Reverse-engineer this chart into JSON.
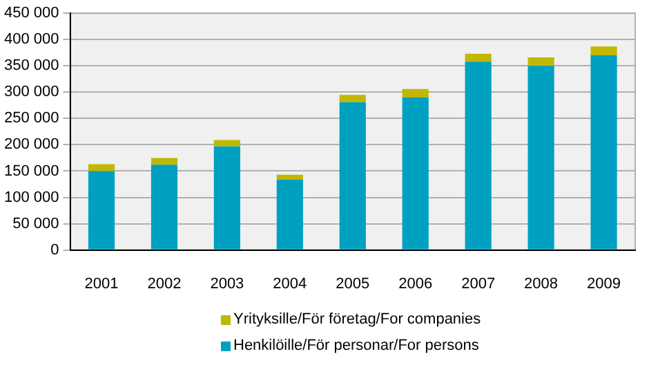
{
  "chart_data": {
    "type": "bar",
    "stacked": true,
    "categories": [
      "2001",
      "2002",
      "2003",
      "2004",
      "2005",
      "2006",
      "2007",
      "2008",
      "2009"
    ],
    "series": [
      {
        "name": "Henkilöille/För personar/For persons",
        "color": "#00a0c0",
        "values": [
          150000,
          162000,
          197000,
          134000,
          281000,
          290000,
          358000,
          350000,
          370000
        ]
      },
      {
        "name": "Yrityksille/För företag/For companies",
        "color": "#c0b800",
        "values": [
          13000,
          13000,
          12000,
          9000,
          14000,
          16000,
          15000,
          16000,
          17000
        ]
      }
    ],
    "ylim": [
      0,
      450000
    ],
    "yticks": [
      0,
      {
        "value": 50000,
        "label": "50 000"
      },
      {
        "value": 100000,
        "label": "100 000"
      },
      {
        "value": 150000,
        "label": "150 000"
      },
      {
        "value": 200000,
        "label": "200 000"
      },
      {
        "value": 250000,
        "label": "250 000"
      },
      {
        "value": 300000,
        "label": "300 000"
      },
      {
        "value": 350000,
        "label": "350 000"
      },
      {
        "value": 400000,
        "label": "400 000"
      },
      {
        "value": 450000,
        "label": "450 000"
      }
    ],
    "grid": "y",
    "legend": "bottom"
  }
}
